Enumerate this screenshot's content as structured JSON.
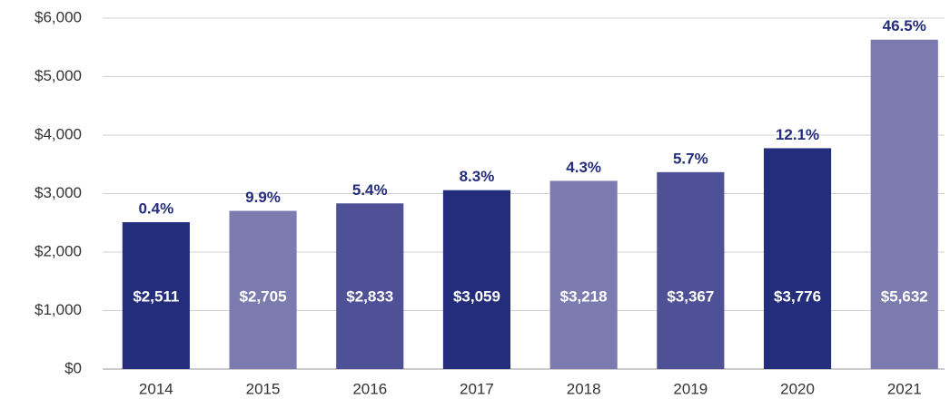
{
  "chart_data": {
    "type": "bar",
    "categories": [
      "2014",
      "2015",
      "2016",
      "2017",
      "2018",
      "2019",
      "2020",
      "2021"
    ],
    "values": [
      2511,
      2705,
      2833,
      3059,
      3218,
      3367,
      3776,
      5632
    ],
    "value_labels": [
      "$2,511",
      "$2,705",
      "$2,833",
      "$3,059",
      "$3,218",
      "$3,367",
      "$3,776",
      "$5,632"
    ],
    "annotations": [
      "0.4%",
      "9.9%",
      "5.4%",
      "8.3%",
      "4.3%",
      "5.7%",
      "12.1%",
      "46.5%"
    ],
    "colors": [
      "#232d7b",
      "#7b7bb0",
      "#4e5196",
      "#232d7b",
      "#7b7bb0",
      "#4e5196",
      "#232d7b",
      "#7b7bb0"
    ],
    "ylim": [
      0,
      6000
    ],
    "yticks": [
      {
        "value": 0,
        "label": "$0"
      },
      {
        "value": 1000,
        "label": "$1,000"
      },
      {
        "value": 2000,
        "label": "$2,000"
      },
      {
        "value": 3000,
        "label": "$3,000"
      },
      {
        "value": 4000,
        "label": "$4,000"
      },
      {
        "value": 5000,
        "label": "$5,000"
      },
      {
        "value": 6000,
        "label": "$6,000"
      }
    ],
    "grid": true
  }
}
